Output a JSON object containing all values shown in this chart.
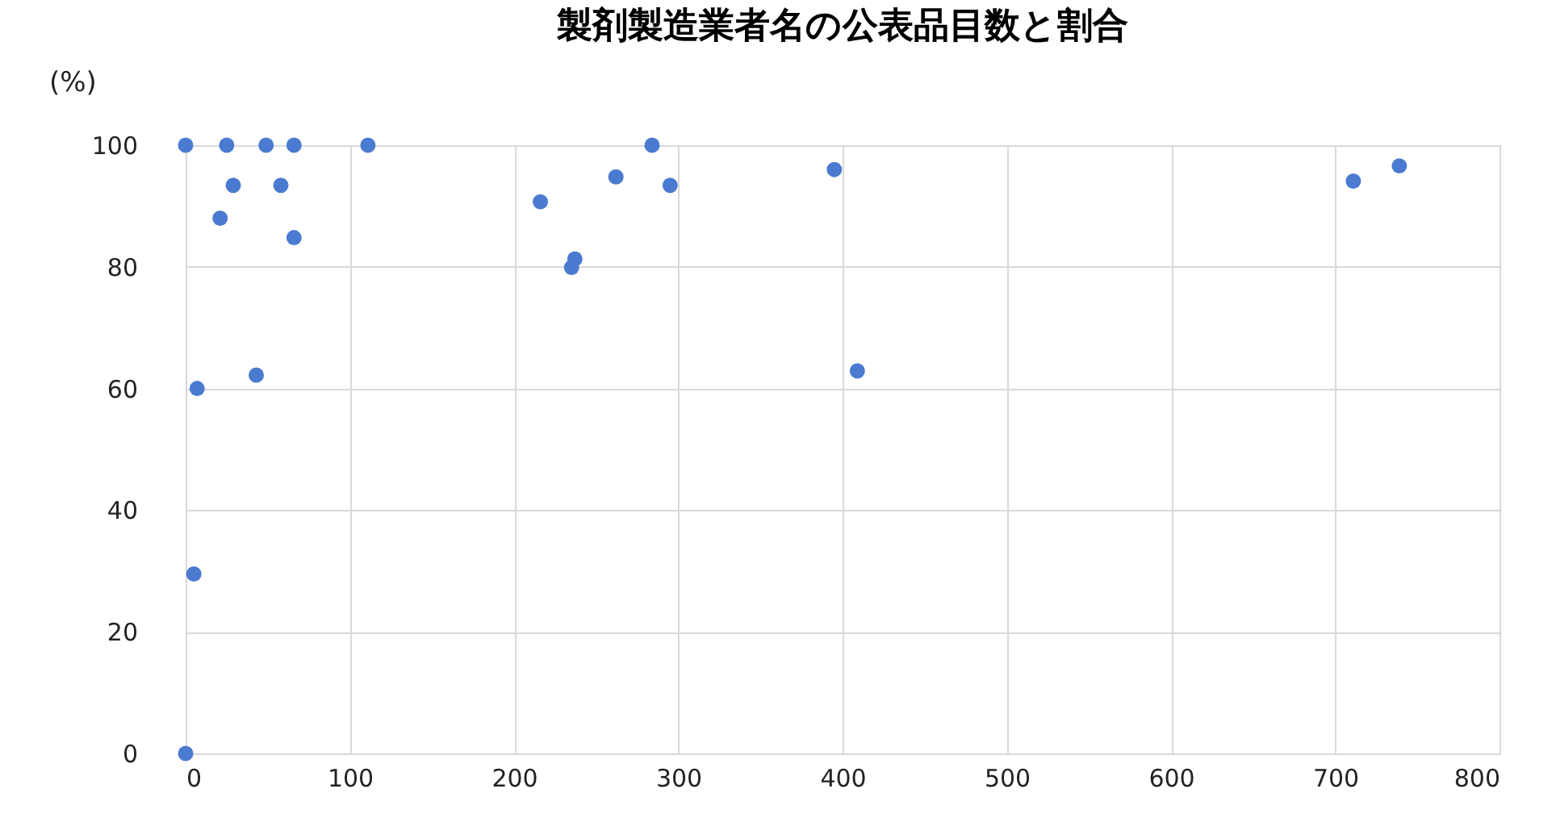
{
  "chart_data": {
    "type": "scatter",
    "title": "製剤製造業者名の公表品目数と割合",
    "ylabel": "(%)",
    "x": [
      0,
      25,
      49,
      66,
      111,
      284,
      29,
      21,
      58,
      66,
      43,
      7,
      5,
      0,
      216,
      235,
      237,
      262,
      295,
      395,
      409,
      711,
      739
    ],
    "series": [
      {
        "color": "#4a7bd0",
        "values": [
          100,
          100,
          100,
          100,
          100,
          100,
          93.4,
          88,
          93.4,
          84.8,
          62.2,
          60,
          29.5,
          0,
          90.7,
          79.9,
          81.3,
          94.8,
          93.4,
          96,
          62.9,
          94.1,
          96.6
        ]
      }
    ],
    "xlim": [
      0,
      800
    ],
    "xticks": [
      0,
      100,
      200,
      300,
      400,
      500,
      600,
      700,
      800
    ],
    "ylim": [
      0,
      100
    ],
    "yticks": [
      0,
      20,
      40,
      60,
      80,
      100
    ],
    "grid": true,
    "marker": "circle"
  }
}
